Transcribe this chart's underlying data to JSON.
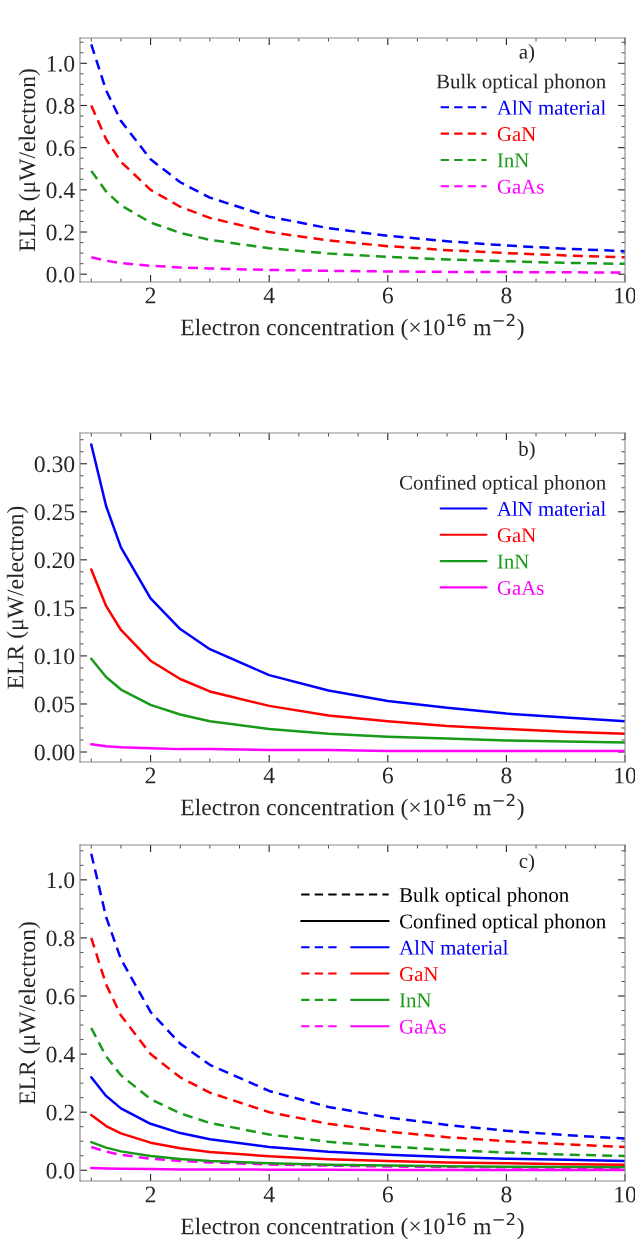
{
  "chart_data": [
    {
      "type": "line",
      "annotations": [
        "a)"
      ],
      "legend_title": "Bulk optical phonon",
      "legend": "top right",
      "xlabel": "Electron concentration (×10$^{16}$ m$^{−2}$)",
      "ylabel": "ELR (μW/electron)",
      "xlim": [
        0.81,
        10
      ],
      "xticks": [
        2,
        4,
        6,
        8,
        10
      ],
      "ylim": [
        -0.037,
        1.12
      ],
      "yticks": [
        {
          "value": 0,
          "label": "0.0"
        },
        0.2,
        0.4,
        0.6,
        0.8,
        {
          "value": 1,
          "label": "1.0"
        }
      ],
      "line_style": "dashed",
      "grid": false,
      "x": [
        1,
        1.25,
        1.5,
        2,
        2.5,
        3,
        4,
        5,
        6,
        7,
        8,
        9,
        10
      ],
      "series": [
        {
          "name": "AlN material",
          "color": "#0000ff",
          "values": [
            1.09,
            0.872,
            0.727,
            0.545,
            0.436,
            0.363,
            0.273,
            0.218,
            0.182,
            0.156,
            0.136,
            0.121,
            0.109
          ]
        },
        {
          "name": "GaN",
          "color": "#ff0000",
          "values": [
            0.8,
            0.64,
            0.533,
            0.4,
            0.32,
            0.267,
            0.2,
            0.16,
            0.133,
            0.114,
            0.1,
            0.089,
            0.08
          ]
        },
        {
          "name": "InN",
          "color": "#1a9a1a",
          "values": [
            0.49,
            0.392,
            0.327,
            0.245,
            0.196,
            0.163,
            0.123,
            0.098,
            0.082,
            0.07,
            0.061,
            0.054,
            0.049
          ]
        },
        {
          "name": "GaAs",
          "color": "#ff00ff",
          "values": [
            0.08,
            0.064,
            0.053,
            0.04,
            0.032,
            0.027,
            0.02,
            0.016,
            0.013,
            0.011,
            0.01,
            0.009,
            0.008
          ]
        }
      ]
    },
    {
      "type": "line",
      "annotations": [
        "b)"
      ],
      "legend_title": "Confined optical phonon",
      "legend": "top right",
      "xlabel": "Electron concentration (×10$^{16}$ m$^{−2}$)",
      "ylabel": "ELR (μW/electron)",
      "xlim": [
        0.81,
        10
      ],
      "xticks": [
        2,
        4,
        6,
        8,
        10
      ],
      "ylim": [
        -0.0104,
        0.332
      ],
      "yticks": [
        {
          "value": 0,
          "label": "0.00"
        },
        {
          "value": 0.05,
          "label": "0.05"
        },
        {
          "value": 0.1,
          "label": "0.10"
        },
        {
          "value": 0.15,
          "label": "0.15"
        },
        {
          "value": 0.2,
          "label": "0.20"
        },
        {
          "value": 0.25,
          "label": "0.25"
        },
        {
          "value": 0.3,
          "label": "0.30"
        }
      ],
      "line_style": "solid",
      "grid": false,
      "x": [
        1,
        1.25,
        1.5,
        2,
        2.5,
        3,
        4,
        5,
        6,
        7,
        8,
        9,
        10
      ],
      "series": [
        {
          "name": "AlN material",
          "color": "#0000ff",
          "values": [
            0.32,
            0.256,
            0.213,
            0.16,
            0.128,
            0.107,
            0.08,
            0.064,
            0.053,
            0.046,
            0.04,
            0.036,
            0.032
          ]
        },
        {
          "name": "GaN",
          "color": "#ff0000",
          "values": [
            0.19,
            0.152,
            0.127,
            0.095,
            0.076,
            0.063,
            0.048,
            0.038,
            0.032,
            0.027,
            0.024,
            0.021,
            0.019
          ]
        },
        {
          "name": "InN",
          "color": "#1a9a1a",
          "values": [
            0.097,
            0.078,
            0.065,
            0.049,
            0.039,
            0.032,
            0.024,
            0.019,
            0.016,
            0.014,
            0.012,
            0.011,
            0.01
          ]
        },
        {
          "name": "GaAs",
          "color": "#ff00ff",
          "values": [
            0.008,
            0.006,
            0.005,
            0.004,
            0.003,
            0.003,
            0.002,
            0.002,
            0.001,
            0.001,
            0.001,
            0.001,
            0.001
          ]
        }
      ]
    },
    {
      "type": "line",
      "annotations": [
        "c)",
        "Bulk optical phonon",
        "Confined optical phonon"
      ],
      "legend": "top right",
      "xlabel": "Electron concentration (×10$^{16}$ m$^{−2}$)",
      "ylabel": "ELR (μW/electron)",
      "xlim": [
        0.81,
        10
      ],
      "xticks": [
        2,
        4,
        6,
        8,
        10
      ],
      "ylim": [
        -0.037,
        1.12
      ],
      "yticks": [
        {
          "value": 0,
          "label": "0.0"
        },
        0.2,
        0.4,
        0.6,
        0.8,
        {
          "value": 1,
          "label": "1.0"
        }
      ],
      "grid": false,
      "x": [
        1,
        1.25,
        1.5,
        2,
        2.5,
        3,
        4,
        5,
        6,
        7,
        8,
        9,
        10
      ],
      "series": [
        {
          "color": "#0000ff",
          "line_style": "dashed",
          "values": [
            1.09,
            0.872,
            0.727,
            0.545,
            0.436,
            0.363,
            0.273,
            0.218,
            0.182,
            0.156,
            0.136,
            0.121,
            0.109
          ]
        },
        {
          "color": "#ff0000",
          "line_style": "dashed",
          "values": [
            0.8,
            0.64,
            0.533,
            0.4,
            0.32,
            0.267,
            0.2,
            0.16,
            0.133,
            0.114,
            0.1,
            0.089,
            0.08
          ]
        },
        {
          "color": "#1a9a1a",
          "line_style": "dashed",
          "values": [
            0.49,
            0.392,
            0.327,
            0.245,
            0.196,
            0.163,
            0.123,
            0.098,
            0.082,
            0.07,
            0.061,
            0.054,
            0.049
          ]
        },
        {
          "color": "#ff00ff",
          "line_style": "dashed",
          "values": [
            0.08,
            0.064,
            0.053,
            0.04,
            0.032,
            0.027,
            0.02,
            0.016,
            0.013,
            0.011,
            0.01,
            0.009,
            0.008
          ]
        },
        {
          "name": "AlN material",
          "color": "#0000ff",
          "line_style": "solid",
          "values": [
            0.32,
            0.256,
            0.213,
            0.16,
            0.128,
            0.107,
            0.08,
            0.064,
            0.053,
            0.046,
            0.04,
            0.036,
            0.032
          ]
        },
        {
          "name": "GaN",
          "color": "#ff0000",
          "line_style": "solid",
          "values": [
            0.19,
            0.152,
            0.127,
            0.095,
            0.076,
            0.063,
            0.048,
            0.038,
            0.032,
            0.027,
            0.024,
            0.021,
            0.019
          ]
        },
        {
          "name": "InN",
          "color": "#1a9a1a",
          "line_style": "solid",
          "values": [
            0.097,
            0.078,
            0.065,
            0.049,
            0.039,
            0.032,
            0.024,
            0.019,
            0.016,
            0.014,
            0.012,
            0.011,
            0.01
          ]
        },
        {
          "name": "GaAs",
          "color": "#ff00ff",
          "line_style": "solid",
          "values": [
            0.008,
            0.006,
            0.005,
            0.004,
            0.003,
            0.003,
            0.002,
            0.002,
            0.001,
            0.001,
            0.001,
            0.001,
            0.001
          ]
        }
      ]
    }
  ]
}
